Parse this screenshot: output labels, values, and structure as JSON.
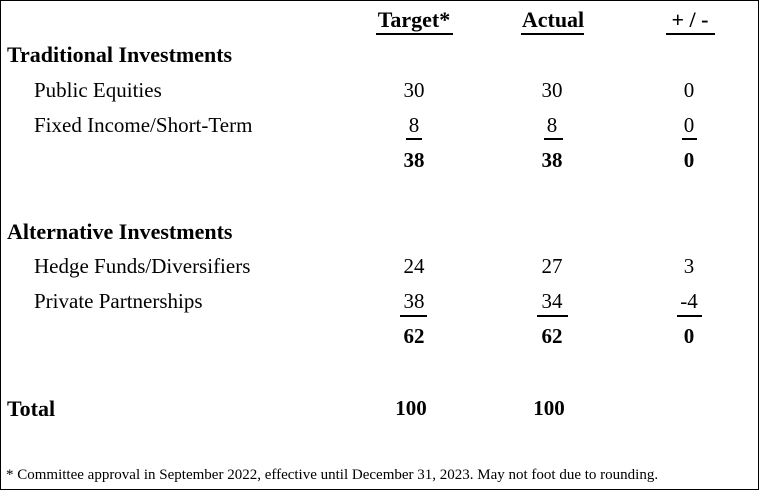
{
  "headers": {
    "target": "Target*",
    "actual": "Actual",
    "diff": "+ / -"
  },
  "sections": {
    "traditional": {
      "title": "Traditional Investments",
      "rows": [
        {
          "label": "Public Equities",
          "target": "30",
          "actual": "30",
          "diff": "0"
        },
        {
          "label": "Fixed Income/Short-Term",
          "target": "8",
          "actual": "8",
          "diff": "0"
        }
      ],
      "subtotal": {
        "target": "38",
        "actual": "38",
        "diff": "0"
      }
    },
    "alternative": {
      "title": "Alternative Investments",
      "rows": [
        {
          "label": "Hedge Funds/Diversifiers",
          "target": "24",
          "actual": "27",
          "diff": "3"
        },
        {
          "label": "Private Partnerships",
          "target": "38",
          "actual": "34",
          "diff": "-4"
        }
      ],
      "subtotal": {
        "target": "62",
        "actual": "62",
        "diff": "0"
      }
    }
  },
  "total": {
    "label": "Total",
    "target": "100",
    "actual": "100"
  },
  "footnote": "* Committee approval in September 2022, effective until December 31, 2023.  May not foot due to rounding."
}
